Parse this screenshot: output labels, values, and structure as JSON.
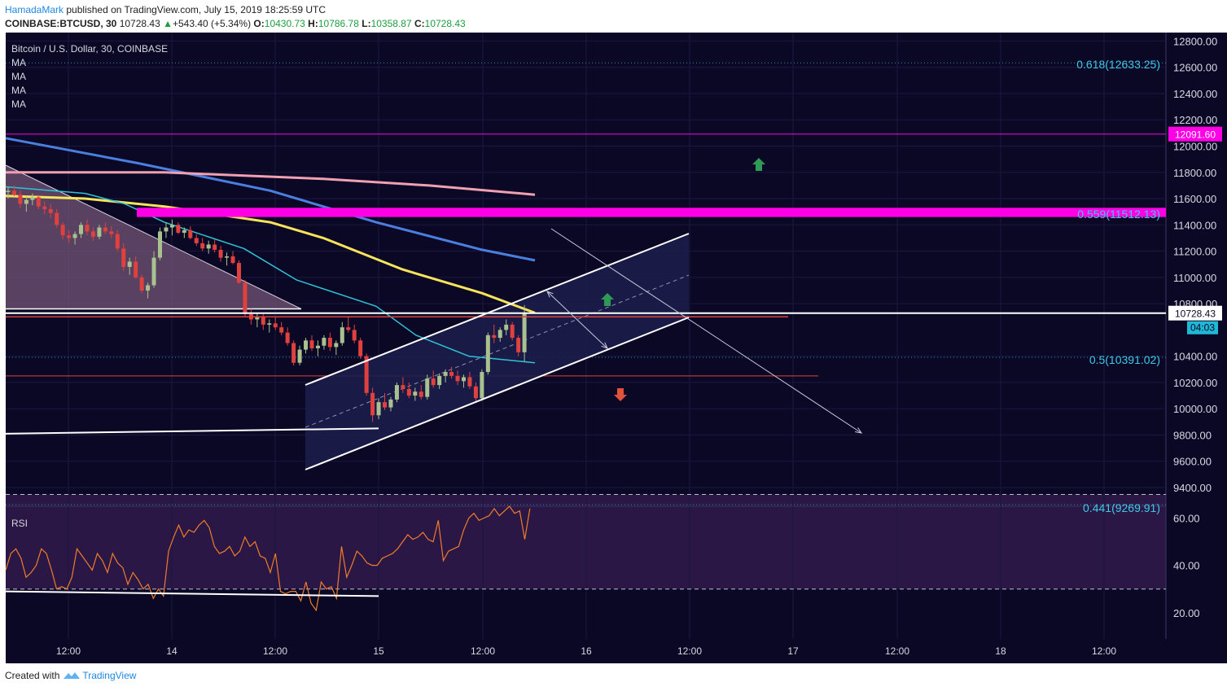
{
  "header": {
    "author": "HamadaMark",
    "published_text": "published on TradingView.com, July 15, 2019 18:25:59 UTC",
    "symbol_interval": "COINBASE:BTCUSD, 30",
    "last_price": "10728.43",
    "change": "+543.40 (+5.34%)",
    "o_label": "O:",
    "o_value": "10430.73",
    "h_label": "H:",
    "h_value": "10786.78",
    "l_label": "L:",
    "l_value": "10358.87",
    "c_label": "C:",
    "c_value": "10728.43"
  },
  "legend": {
    "title": "Bitcoin / U.S. Dollar, 30, COINBASE",
    "ma_labels": [
      "MA",
      "MA",
      "MA",
      "MA"
    ],
    "rsi_label": "RSI"
  },
  "footer": {
    "created_with": "Created with",
    "brand": "TradingView"
  },
  "colors": {
    "background": "#0b0826",
    "grid": "#1a1740",
    "candle_up": "#a9c18e",
    "candle_down": "#e0413f",
    "ma_blue": "#4a7fe0",
    "ma_pink": "#f0a0b0",
    "ma_yellow": "#f8e45a",
    "ma_cyan": "#2ec4d6",
    "magenta": "#ff00e6",
    "fib_text": "#3ec9e8",
    "rsi_line": "#f07c2a",
    "rsi_fill": "#2a1745",
    "arrow_up": "#2e9a55",
    "arrow_down": "#e2513a"
  },
  "chart_data": {
    "type": "candlestick",
    "title": "Bitcoin / U.S. Dollar, 30, COINBASE",
    "price_axis": {
      "ticks": [
        "12800.00",
        "12600.00",
        "12400.00",
        "12200.00",
        "12000.00",
        "11800.00",
        "11600.00",
        "11400.00",
        "11200.00",
        "11000.00",
        "10800.00",
        "10400.00",
        "10200.00",
        "10000.00",
        "9800.00",
        "9600.00",
        "9400.00"
      ],
      "ylim": [
        9270,
        12820
      ]
    },
    "time_axis": {
      "ticks": [
        "12:00",
        "14",
        "12:00",
        "15",
        "12:00",
        "16",
        "12:00",
        "17",
        "12:00",
        "18",
        "12:00"
      ]
    },
    "price_labels": {
      "last": "10728.43",
      "countdown": "04:03",
      "level": "12091.60"
    },
    "fibonacci": [
      {
        "label": "0.618(12633.25)",
        "value": 12633.25
      },
      {
        "label": "0.5(10391.02)",
        "value": 10391.02
      },
      {
        "label": "0.441(9269.91)",
        "value": 9269.91
      }
    ],
    "obscured_fib_label": "0.559(11512.13)",
    "horizontal_levels": {
      "magenta_line": 12091.6,
      "magenta_zone": [
        11460,
        11530
      ],
      "white_line": 10728,
      "red_line_upper": 10700,
      "red_line_lower": 10250,
      "low_support_start": 9810,
      "low_support_end": 9850
    },
    "candles": [
      [
        11650,
        11690,
        11600,
        11660
      ],
      [
        11660,
        11700,
        11620,
        11630
      ],
      [
        11630,
        11660,
        11530,
        11560
      ],
      [
        11560,
        11620,
        11500,
        11590
      ],
      [
        11590,
        11640,
        11550,
        11610
      ],
      [
        11610,
        11630,
        11520,
        11540
      ],
      [
        11540,
        11580,
        11480,
        11520
      ],
      [
        11520,
        11560,
        11450,
        11490
      ],
      [
        11490,
        11520,
        11380,
        11400
      ],
      [
        11400,
        11420,
        11290,
        11320
      ],
      [
        11320,
        11360,
        11260,
        11300
      ],
      [
        11300,
        11350,
        11250,
        11330
      ],
      [
        11330,
        11420,
        11300,
        11400
      ],
      [
        11400,
        11440,
        11320,
        11350
      ],
      [
        11350,
        11380,
        11280,
        11310
      ],
      [
        11310,
        11400,
        11290,
        11380
      ],
      [
        11380,
        11420,
        11330,
        11350
      ],
      [
        11350,
        11390,
        11300,
        11330
      ],
      [
        11330,
        11360,
        11200,
        11220
      ],
      [
        11220,
        11260,
        11050,
        11080
      ],
      [
        11080,
        11150,
        11020,
        11120
      ],
      [
        11120,
        11160,
        10990,
        11000
      ],
      [
        11000,
        11020,
        10880,
        10900
      ],
      [
        10900,
        10960,
        10840,
        10940
      ],
      [
        10940,
        11200,
        10920,
        11150
      ],
      [
        11150,
        11380,
        11130,
        11350
      ],
      [
        11350,
        11420,
        11300,
        11380
      ],
      [
        11380,
        11440,
        11320,
        11400
      ],
      [
        11400,
        11420,
        11330,
        11340
      ],
      [
        11340,
        11380,
        11300,
        11360
      ],
      [
        11360,
        11390,
        11290,
        11300
      ],
      [
        11300,
        11330,
        11240,
        11260
      ],
      [
        11260,
        11300,
        11200,
        11220
      ],
      [
        11220,
        11280,
        11180,
        11250
      ],
      [
        11250,
        11290,
        11190,
        11210
      ],
      [
        11210,
        11240,
        11120,
        11150
      ],
      [
        11150,
        11190,
        11090,
        11160
      ],
      [
        11160,
        11200,
        11100,
        11110
      ],
      [
        11110,
        11130,
        10950,
        10960
      ],
      [
        10960,
        10980,
        10700,
        10720
      ],
      [
        10720,
        10760,
        10640,
        10680
      ],
      [
        10680,
        10730,
        10620,
        10700
      ],
      [
        10700,
        10720,
        10600,
        10640
      ],
      [
        10640,
        10680,
        10580,
        10650
      ],
      [
        10650,
        10700,
        10600,
        10620
      ],
      [
        10620,
        10660,
        10560,
        10580
      ],
      [
        10580,
        10620,
        10480,
        10500
      ],
      [
        10500,
        10520,
        10330,
        10350
      ],
      [
        10350,
        10480,
        10330,
        10450
      ],
      [
        10450,
        10540,
        10420,
        10520
      ],
      [
        10520,
        10560,
        10440,
        10460
      ],
      [
        10460,
        10520,
        10400,
        10480
      ],
      [
        10480,
        10560,
        10450,
        10540
      ],
      [
        10540,
        10580,
        10440,
        10470
      ],
      [
        10470,
        10520,
        10410,
        10500
      ],
      [
        10500,
        10660,
        10480,
        10620
      ],
      [
        10620,
        10700,
        10580,
        10600
      ],
      [
        10600,
        10640,
        10500,
        10520
      ],
      [
        10520,
        10540,
        10380,
        10400
      ],
      [
        10400,
        10420,
        10100,
        10120
      ],
      [
        10120,
        10160,
        9900,
        9950
      ],
      [
        9950,
        10080,
        9920,
        10050
      ],
      [
        10050,
        10120,
        9990,
        10010
      ],
      [
        10010,
        10090,
        9980,
        10070
      ],
      [
        10070,
        10200,
        10050,
        10180
      ],
      [
        10180,
        10240,
        10120,
        10150
      ],
      [
        10150,
        10200,
        10080,
        10100
      ],
      [
        10100,
        10160,
        10060,
        10130
      ],
      [
        10130,
        10180,
        10070,
        10090
      ],
      [
        10090,
        10260,
        10070,
        10230
      ],
      [
        10230,
        10290,
        10160,
        10180
      ],
      [
        10180,
        10270,
        10150,
        10250
      ],
      [
        10250,
        10300,
        10200,
        10280
      ],
      [
        10280,
        10320,
        10230,
        10250
      ],
      [
        10250,
        10290,
        10180,
        10210
      ],
      [
        10210,
        10260,
        10160,
        10240
      ],
      [
        10240,
        10280,
        10150,
        10170
      ],
      [
        10170,
        10200,
        10060,
        10080
      ],
      [
        10080,
        10300,
        10060,
        10280
      ],
      [
        10280,
        10580,
        10260,
        10560
      ],
      [
        10560,
        10640,
        10500,
        10540
      ],
      [
        10540,
        10620,
        10510,
        10600
      ],
      [
        10600,
        10680,
        10560,
        10640
      ],
      [
        10640,
        10660,
        10520,
        10540
      ],
      [
        10540,
        10560,
        10400,
        10430
      ],
      [
        10430,
        10790,
        10360,
        10728
      ]
    ],
    "moving_averages": {
      "blue": [
        [
          0,
          12060
        ],
        [
          50,
          11870
        ],
        [
          100,
          11660
        ],
        [
          140,
          11420
        ],
        [
          180,
          11210
        ],
        [
          200,
          11130
        ]
      ],
      "pink": [
        [
          0,
          11800
        ],
        [
          60,
          11800
        ],
        [
          120,
          11750
        ],
        [
          160,
          11700
        ],
        [
          200,
          11630
        ]
      ],
      "yellow": [
        [
          0,
          11620
        ],
        [
          30,
          11600
        ],
        [
          60,
          11540
        ],
        [
          100,
          11420
        ],
        [
          120,
          11300
        ],
        [
          150,
          11060
        ],
        [
          180,
          10880
        ],
        [
          200,
          10730
        ]
      ],
      "cyan": [
        [
          0,
          11690
        ],
        [
          30,
          11640
        ],
        [
          45,
          11560
        ],
        [
          60,
          11420
        ],
        [
          90,
          11220
        ],
        [
          110,
          10980
        ],
        [
          140,
          10780
        ],
        [
          155,
          10560
        ],
        [
          175,
          10400
        ],
        [
          200,
          10350
        ]
      ]
    },
    "rsi": {
      "axis_ticks": [
        "60.00",
        "40.00",
        "20.00"
      ],
      "ylim": [
        18,
        72
      ],
      "bands": [
        70,
        30
      ],
      "values": [
        38,
        45,
        47,
        43,
        35,
        37,
        40,
        47,
        45,
        38,
        30,
        31,
        30,
        35,
        47,
        44,
        41,
        38,
        45,
        42,
        37,
        45,
        41,
        39,
        32,
        37,
        34,
        30,
        32,
        26,
        30,
        27,
        46,
        52,
        57,
        52,
        55,
        54,
        57,
        59,
        56,
        48,
        45,
        46,
        48,
        44,
        46,
        52,
        48,
        50,
        44,
        43,
        37,
        45,
        29,
        28,
        29,
        29,
        25,
        33,
        24,
        21,
        33,
        30,
        31,
        26,
        48,
        35,
        40,
        46,
        44,
        41,
        40,
        40,
        43,
        44,
        45,
        47,
        50,
        53,
        51,
        52,
        54,
        51,
        50,
        59,
        42,
        46,
        47,
        48,
        55,
        60,
        62,
        59,
        60,
        61,
        64,
        61,
        63,
        65,
        62,
        63,
        51,
        64
      ]
    }
  }
}
